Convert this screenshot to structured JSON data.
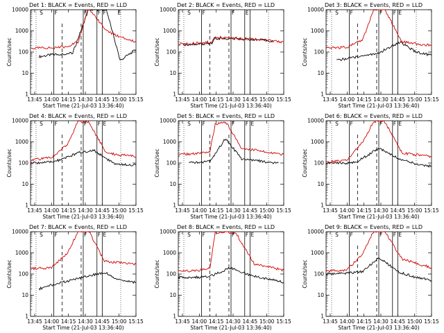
{
  "chart_data": [
    {
      "type": "line",
      "title": "Det 1: BLACK = Events, RED = LLD",
      "xlabel": "Start Time (21-Jul-03 13:36:40)",
      "ylabel": "Counts/sec",
      "ylim": [
        1,
        10000
      ],
      "y_scale": "log",
      "x_ticks": [
        "13:45",
        "14:00",
        "14:15",
        "14:30",
        "14:45",
        "15:00",
        "15:15"
      ],
      "y_ticks": [
        "1",
        "10",
        "100",
        "1000",
        "10000"
      ],
      "markers": [
        "S",
        "F",
        "F",
        "F",
        "F",
        "E"
      ],
      "series": [
        {
          "name": "Events",
          "color": "#000000",
          "x": [
            0.08,
            0.2,
            0.3,
            0.4,
            0.55,
            0.72,
            0.85,
            1.0
          ],
          "y": [
            60,
            75,
            80,
            90,
            10000,
            10000,
            40,
            130
          ]
        },
        {
          "name": "LLD",
          "color": "#d00000",
          "x": [
            0.0,
            0.2,
            0.35,
            0.45,
            0.55,
            0.72,
            0.85,
            1.0
          ],
          "y": [
            150,
            160,
            180,
            300,
            12000,
            1000,
            500,
            300
          ]
        }
      ]
    },
    {
      "type": "line",
      "title": "Det 2: BLACK = Events, RED = LLD",
      "xlabel": "Start Time (21-Jul-03 13:36:40)",
      "ylabel": "Counts/sec",
      "ylim": [
        1,
        10000
      ],
      "y_scale": "log",
      "x_ticks": [
        "13:45",
        "14:00",
        "14:15",
        "14:30",
        "14:45",
        "15:00",
        "15:15"
      ],
      "y_ticks": [
        "1",
        "10",
        "100",
        "1000",
        "10000"
      ],
      "markers": [
        "S",
        "F",
        "F",
        "E"
      ],
      "series": [
        {
          "name": "Events",
          "color": "#000000",
          "x": [
            0.05,
            0.2,
            0.32,
            0.35,
            0.7,
            0.9
          ],
          "y": [
            220,
            240,
            260,
            450,
            400,
            330
          ]
        },
        {
          "name": "LLD",
          "color": "#d00000",
          "x": [
            0.0,
            0.2,
            0.32,
            0.35,
            0.7,
            1.0
          ],
          "y": [
            240,
            270,
            300,
            500,
            420,
            300
          ]
        }
      ]
    },
    {
      "type": "line",
      "title": "Det 3: BLACK = Events, RED = LLD",
      "xlabel": "Start Time (21-Jul-03 13:36:40)",
      "ylabel": "Counts/sec",
      "ylim": [
        1,
        10000
      ],
      "y_scale": "log",
      "x_ticks": [
        "13:45",
        "14:00",
        "14:15",
        "14:30",
        "14:45",
        "15:00",
        "15:15"
      ],
      "y_ticks": [
        "1",
        "10",
        "100",
        "1000",
        "10000"
      ],
      "markers": [
        "S",
        "F",
        "F",
        "F",
        "E"
      ],
      "series": [
        {
          "name": "Events",
          "color": "#000000",
          "x": [
            0.1,
            0.2,
            0.3,
            0.5,
            0.7,
            0.85,
            1.0
          ],
          "y": [
            40,
            50,
            60,
            90,
            300,
            100,
            70
          ]
        },
        {
          "name": "LLD",
          "color": "#d00000",
          "x": [
            0.0,
            0.2,
            0.35,
            0.45,
            0.55,
            0.72,
            1.0
          ],
          "y": [
            150,
            170,
            400,
            10000,
            12000,
            300,
            200
          ]
        }
      ]
    },
    {
      "type": "line",
      "title": "Det 4: BLACK = Events, RED = LLD",
      "xlabel": "Start Time (21-Jul-03 13:36:40)",
      "ylabel": "Counts/sec",
      "ylim": [
        1,
        10000
      ],
      "y_scale": "log",
      "x_ticks": [
        "13:45",
        "14:00",
        "14:15",
        "14:30",
        "14:45",
        "15:00",
        "15:15"
      ],
      "y_ticks": [
        "1",
        "10",
        "100",
        "1000",
        "10000"
      ],
      "markers": [
        "S",
        "F",
        "F",
        "F",
        "E"
      ],
      "series": [
        {
          "name": "Events",
          "color": "#000000",
          "x": [
            0.0,
            0.2,
            0.3,
            0.45,
            0.6,
            0.8,
            1.0
          ],
          "y": [
            100,
            110,
            150,
            300,
            400,
            90,
            80
          ]
        },
        {
          "name": "LLD",
          "color": "#d00000",
          "x": [
            0.0,
            0.2,
            0.35,
            0.45,
            0.55,
            0.72,
            1.0
          ],
          "y": [
            140,
            180,
            800,
            9000,
            9000,
            300,
            200
          ]
        }
      ]
    },
    {
      "type": "line",
      "title": "Det 5: BLACK = Events, RED = LLD",
      "xlabel": "Start Time (21-Jul-03 13:36:40)",
      "ylabel": "Counts/sec",
      "ylim": [
        1,
        10000
      ],
      "y_scale": "log",
      "x_ticks": [
        "13:45",
        "14:00",
        "14:15",
        "14:30",
        "14:45",
        "15:00",
        "15:15"
      ],
      "y_ticks": [
        "1",
        "10",
        "100",
        "1000",
        "10000"
      ],
      "markers": [
        "S",
        "F",
        "F",
        "F",
        "E"
      ],
      "series": [
        {
          "name": "Events",
          "color": "#000000",
          "x": [
            0.1,
            0.2,
            0.3,
            0.45,
            0.6,
            0.8,
            0.95
          ],
          "y": [
            100,
            110,
            120,
            1500,
            150,
            120,
            100
          ]
        },
        {
          "name": "LLD",
          "color": "#d00000",
          "x": [
            0.0,
            0.2,
            0.3,
            0.35,
            0.45,
            0.6,
            1.0
          ],
          "y": [
            250,
            280,
            320,
            7000,
            9000,
            500,
            250
          ]
        }
      ]
    },
    {
      "type": "line",
      "title": "Det 6: BLACK = Events, RED = LLD",
      "xlabel": "Start Time (21-Jul-03 13:36:40)",
      "ylabel": "Counts/sec",
      "ylim": [
        1,
        10000
      ],
      "y_scale": "log",
      "x_ticks": [
        "13:45",
        "14:00",
        "14:15",
        "14:30",
        "14:45",
        "15:00",
        "15:15"
      ],
      "y_ticks": [
        "1",
        "10",
        "100",
        "1000",
        "10000"
      ],
      "markers": [
        "S",
        "F",
        "F",
        "F",
        "E"
      ],
      "series": [
        {
          "name": "Events",
          "color": "#000000",
          "x": [
            0.0,
            0.2,
            0.3,
            0.5,
            0.7,
            0.85,
            1.0
          ],
          "y": [
            100,
            100,
            120,
            500,
            150,
            90,
            70
          ]
        },
        {
          "name": "LLD",
          "color": "#d00000",
          "x": [
            0.0,
            0.2,
            0.35,
            0.45,
            0.55,
            0.72,
            1.0
          ],
          "y": [
            110,
            140,
            1000,
            9000,
            10000,
            300,
            200
          ]
        }
      ]
    },
    {
      "type": "line",
      "title": "Det 7: BLACK = Events, RED = LLD",
      "xlabel": "Start Time (21-Jul-03 13:36:40)",
      "ylabel": "Counts/sec",
      "ylim": [
        1,
        10000
      ],
      "y_scale": "log",
      "x_ticks": [
        "13:45",
        "14:00",
        "14:15",
        "14:30",
        "14:45",
        "15:00",
        "15:15"
      ],
      "y_ticks": [
        "1",
        "10",
        "100",
        "1000",
        "10000"
      ],
      "markers": [
        "S",
        "F",
        "F",
        "F",
        "E"
      ],
      "series": [
        {
          "name": "Events",
          "color": "#000000",
          "x": [
            0.08,
            0.2,
            0.3,
            0.55,
            0.7,
            0.85,
            1.0
          ],
          "y": [
            20,
            30,
            40,
            80,
            120,
            50,
            40
          ]
        },
        {
          "name": "LLD",
          "color": "#d00000",
          "x": [
            0.0,
            0.2,
            0.35,
            0.45,
            0.55,
            0.7,
            1.0
          ],
          "y": [
            180,
            200,
            1000,
            10000,
            12000,
            400,
            300
          ]
        }
      ]
    },
    {
      "type": "line",
      "title": "Det 8: BLACK = Events, RED = LLD",
      "xlabel": "Start Time (21-Jul-03 13:36:40)",
      "ylabel": "Counts/sec",
      "ylim": [
        1,
        10000
      ],
      "y_scale": "log",
      "x_ticks": [
        "13:45",
        "14:00",
        "14:15",
        "14:30",
        "14:45",
        "15:00",
        "15:15"
      ],
      "y_ticks": [
        "1",
        "10",
        "100",
        "1000",
        "10000"
      ],
      "markers": [
        "S",
        "F",
        "F",
        "F",
        "E"
      ],
      "series": [
        {
          "name": "Events",
          "color": "#000000",
          "x": [
            0.0,
            0.2,
            0.3,
            0.5,
            0.7,
            0.85,
            1.0
          ],
          "y": [
            70,
            70,
            80,
            200,
            80,
            60,
            40
          ]
        },
        {
          "name": "LLD",
          "color": "#d00000",
          "x": [
            0.0,
            0.2,
            0.3,
            0.35,
            0.45,
            0.55,
            0.72,
            1.0
          ],
          "y": [
            130,
            150,
            200,
            9000,
            10000,
            8000,
            300,
            150
          ]
        }
      ]
    },
    {
      "type": "line",
      "title": "Det 9: BLACK = Events, RED = LLD",
      "xlabel": "Start Time (21-Jul-03 13:36:40)",
      "ylabel": "Counts/sec",
      "ylim": [
        1,
        10000
      ],
      "y_scale": "log",
      "x_ticks": [
        "13:45",
        "14:00",
        "14:15",
        "14:30",
        "14:45",
        "15:00",
        "15:15"
      ],
      "y_ticks": [
        "1",
        "10",
        "100",
        "1000",
        "10000"
      ],
      "markers": [
        "S",
        "F",
        "F",
        "F",
        "E"
      ],
      "series": [
        {
          "name": "Events",
          "color": "#000000",
          "x": [
            0.0,
            0.2,
            0.35,
            0.5,
            0.7,
            0.85,
            1.0
          ],
          "y": [
            100,
            110,
            130,
            600,
            120,
            70,
            50
          ]
        },
        {
          "name": "LLD",
          "color": "#d00000",
          "x": [
            0.0,
            0.2,
            0.35,
            0.45,
            0.55,
            0.72,
            1.0
          ],
          "y": [
            140,
            160,
            1000,
            10000,
            12000,
            500,
            200
          ]
        }
      ]
    }
  ]
}
